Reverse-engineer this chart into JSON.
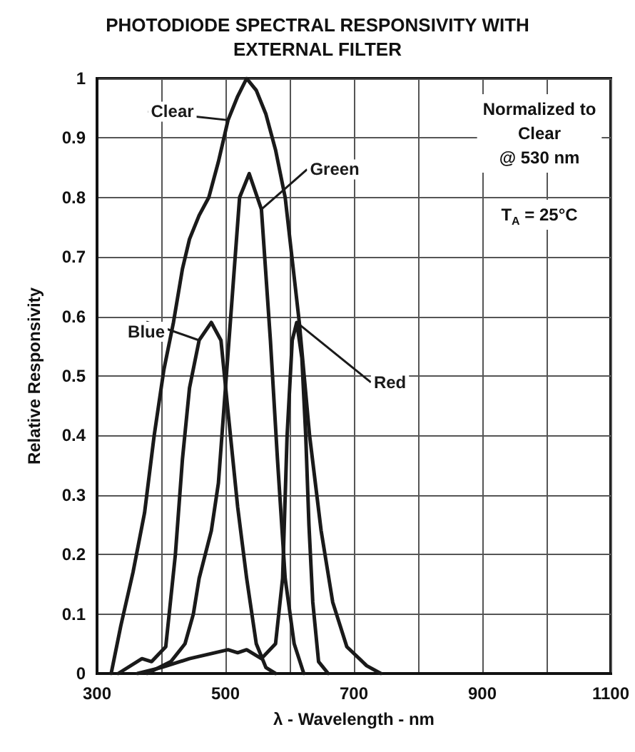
{
  "chart_data": {
    "type": "line",
    "title": "PHOTODIODE SPECTRAL RESPONSIVITY WITH\nEXTERNAL FILTER",
    "xlabel": "λ - Wavelength - nm",
    "ylabel": "Relative Responsivity",
    "xlim": [
      300,
      1100
    ],
    "xticks": [
      300,
      {
        "value": 400,
        "label": null
      },
      500,
      {
        "value": 600,
        "label": null
      },
      700,
      {
        "value": 800,
        "label": null
      },
      900,
      {
        "value": 1000,
        "label": null
      },
      1100
    ],
    "ylim": [
      0,
      1
    ],
    "yticks": [
      0,
      0.1,
      0.2,
      0.3,
      0.4,
      0.5,
      0.6,
      0.7,
      0.8,
      0.9,
      1
    ],
    "grid": true,
    "legend": false,
    "marker": "none",
    "line_style": "solid",
    "annotations": [
      "Normalized to\nClear\n@ 530 nm",
      "T$_{A}$ = 25°C"
    ],
    "series": [
      {
        "name": "Clear",
        "color": "#1a1a1a",
        "x": [
          322,
          337,
          356,
          374,
          389,
          404,
          419,
          433,
          444,
          459,
          474,
          489,
          504,
          519,
          533,
          548,
          563,
          578,
          593,
          615,
          631,
          649,
          667,
          689,
          720,
          742
        ],
        "values": [
          0,
          0.08,
          0.17,
          0.27,
          0.4,
          0.51,
          0.59,
          0.68,
          0.73,
          0.77,
          0.8,
          0.86,
          0.93,
          0.97,
          1,
          0.98,
          0.94,
          0.88,
          0.8,
          0.59,
          0.4,
          0.24,
          0.12,
          0.045,
          0.013,
          0
        ]
      },
      {
        "name": "Green",
        "color": "#1a1a1a",
        "x": [
          378,
          415,
          437,
          450,
          459,
          478,
          489,
          500,
          511,
          522,
          537,
          556,
          570,
          581,
          593,
          607,
          622
        ],
        "values": [
          0,
          0.02,
          0.05,
          0.1,
          0.16,
          0.24,
          0.32,
          0.48,
          0.64,
          0.8,
          0.84,
          0.78,
          0.56,
          0.36,
          0.16,
          0.05,
          0
        ]
      },
      {
        "name": "Blue",
        "color": "#1a1a1a",
        "x": [
          333,
          370,
          385,
          407,
          422,
          433,
          444,
          459,
          478,
          493,
          504,
          519,
          533,
          548,
          563,
          578
        ],
        "values": [
          0,
          0.025,
          0.02,
          0.045,
          0.2,
          0.36,
          0.48,
          0.56,
          0.59,
          0.56,
          0.44,
          0.28,
          0.16,
          0.05,
          0.01,
          0
        ]
      },
      {
        "name": "Red",
        "color": "#1a1a1a",
        "x": [
          363,
          400,
          444,
          504,
          519,
          533,
          556,
          578,
          589,
          596,
          604,
          611,
          619,
          625,
          630,
          636,
          645,
          660
        ],
        "values": [
          0,
          0.01,
          0.025,
          0.04,
          0.035,
          0.04,
          0.025,
          0.05,
          0.16,
          0.4,
          0.56,
          0.59,
          0.53,
          0.4,
          0.25,
          0.12,
          0.02,
          0
        ]
      }
    ]
  }
}
